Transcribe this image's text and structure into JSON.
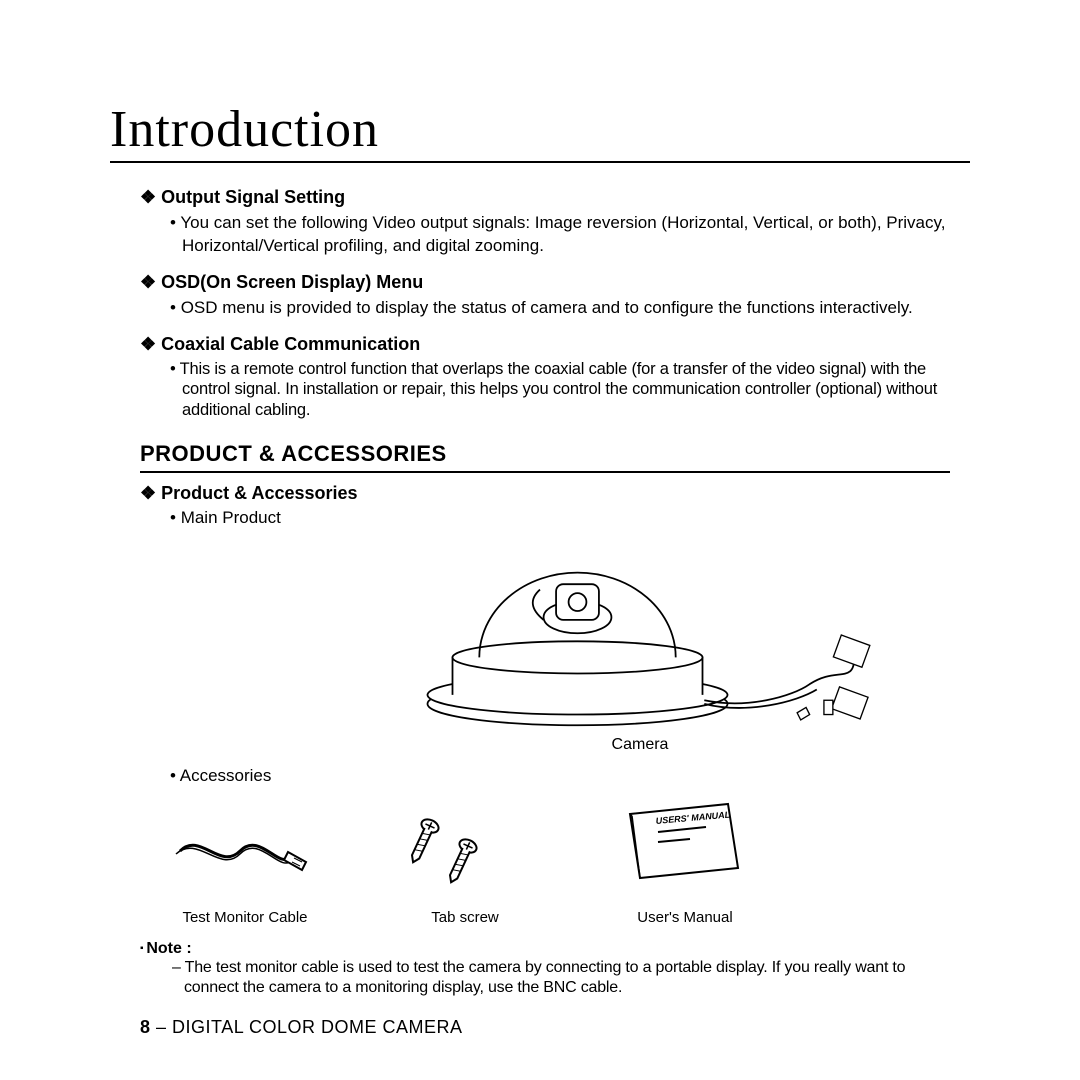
{
  "page": {
    "title": "Introduction",
    "footer_page": "8",
    "footer_product": "DIGITAL COLOR DOME CAMERA"
  },
  "features": [
    {
      "heading": "Output Signal Setting",
      "body": "You can set the following Video output signals: Image reversion (Horizontal, Vertical, or both), Privacy, Horizontal/Vertical profiling, and digital zooming.",
      "tight": false
    },
    {
      "heading": "OSD(On Screen Display) Menu",
      "body": "OSD menu is provided to display the status of camera and to configure the functions interactively.",
      "tight": false
    },
    {
      "heading": "Coaxial Cable Communication",
      "body": "This is a remote control function that overlaps the coaxial cable (for a transfer of the video signal) with the control signal. In installation or repair, this helps you control the communication controller (optional) without additional cabling.",
      "tight": true
    }
  ],
  "product_accessories": {
    "section_title": "PRODUCT & ACCESSORIES",
    "subhead": "Product & Accessories",
    "main_product_label": "Main Product",
    "camera_label": "Camera",
    "accessories_label": "Accessories",
    "items": [
      {
        "caption": "Test Monitor Cable",
        "icon": "cable"
      },
      {
        "caption": "Tab screw",
        "icon": "screws"
      },
      {
        "caption": "User's Manual",
        "icon": "manual"
      }
    ],
    "manual_cover_text": "USERS' MANUAL"
  },
  "note": {
    "label": "Note :",
    "body": "The test monitor cable is used to test the camera by connecting to a portable display. If you really want to connect the camera to a monitoring display, use the BNC cable."
  },
  "style": {
    "text_color": "#000000",
    "bg_color": "#ffffff",
    "rule_color": "#000000",
    "title_fontsize": 52,
    "subhead_fontsize": 18,
    "body_fontsize": 17,
    "section_header_fontsize": 22,
    "footer_fontsize": 18
  }
}
